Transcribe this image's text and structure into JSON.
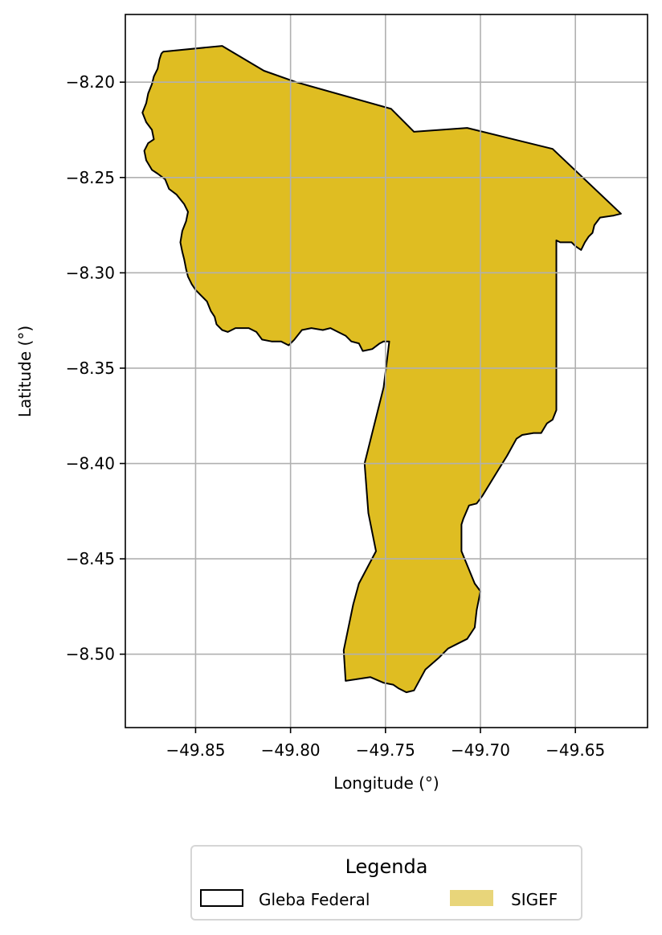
{
  "chart_data": {
    "type": "map",
    "title": "",
    "xlabel": "Longitude (°)",
    "ylabel": "Latitude (°)",
    "xlim": [
      -49.887,
      -49.612
    ],
    "ylim": [
      -8.5385,
      -8.1645
    ],
    "xticks": [
      -49.85,
      -49.8,
      -49.75,
      -49.7,
      -49.65
    ],
    "xtick_labels": [
      "−49.85",
      "−49.80",
      "−49.75",
      "−49.70",
      "−49.65"
    ],
    "yticks": [
      -8.2,
      -8.25,
      -8.3,
      -8.35,
      -8.4,
      -8.45,
      -8.5
    ],
    "ytick_labels": [
      "−8.20",
      "−8.25",
      "−8.30",
      "−8.35",
      "−8.40",
      "−8.45",
      "−8.50"
    ],
    "grid": true,
    "legend": {
      "title": "Legenda",
      "placement": "bottom-center",
      "entries": [
        {
          "label": "Gleba Federal",
          "style": "outline",
          "edge_color": "#000000"
        },
        {
          "label": "SIGEF",
          "style": "fill",
          "color": "#e8d57a"
        }
      ]
    },
    "layers": [
      {
        "name": "Gleba Federal",
        "fill_color": "#dfbd22",
        "edge_color": "#000000",
        "polygon": [
          [
            -49.867,
            -8.184
          ],
          [
            -49.836,
            -8.181
          ],
          [
            -49.814,
            -8.194
          ],
          [
            -49.797,
            -8.2
          ],
          [
            -49.747,
            -8.214
          ],
          [
            -49.735,
            -8.226
          ],
          [
            -49.707,
            -8.224
          ],
          [
            -49.662,
            -8.235
          ],
          [
            -49.626,
            -8.269
          ],
          [
            -49.63,
            -8.27
          ],
          [
            -49.637,
            -8.271
          ],
          [
            -49.64,
            -8.275
          ],
          [
            -49.641,
            -8.279
          ],
          [
            -49.643,
            -8.281
          ],
          [
            -49.645,
            -8.284
          ],
          [
            -49.647,
            -8.288
          ],
          [
            -49.65,
            -8.286
          ],
          [
            -49.652,
            -8.284
          ],
          [
            -49.656,
            -8.284
          ],
          [
            -49.658,
            -8.284
          ],
          [
            -49.66,
            -8.283
          ],
          [
            -49.66,
            -8.372
          ],
          [
            -49.662,
            -8.377
          ],
          [
            -49.665,
            -8.379
          ],
          [
            -49.668,
            -8.384
          ],
          [
            -49.672,
            -8.384
          ],
          [
            -49.678,
            -8.385
          ],
          [
            -49.681,
            -8.387
          ],
          [
            -49.686,
            -8.396
          ],
          [
            -49.691,
            -8.404
          ],
          [
            -49.699,
            -8.417
          ],
          [
            -49.702,
            -8.421
          ],
          [
            -49.706,
            -8.422
          ],
          [
            -49.709,
            -8.429
          ],
          [
            -49.71,
            -8.432
          ],
          [
            -49.71,
            -8.446
          ],
          [
            -49.703,
            -8.463
          ],
          [
            -49.7,
            -8.467
          ],
          [
            -49.702,
            -8.477
          ],
          [
            -49.703,
            -8.486
          ],
          [
            -49.707,
            -8.492
          ],
          [
            -49.713,
            -8.495
          ],
          [
            -49.717,
            -8.497
          ],
          [
            -49.722,
            -8.502
          ],
          [
            -49.729,
            -8.508
          ],
          [
            -49.735,
            -8.519
          ],
          [
            -49.739,
            -8.52
          ],
          [
            -49.743,
            -8.518
          ],
          [
            -49.746,
            -8.516
          ],
          [
            -49.751,
            -8.515
          ],
          [
            -49.758,
            -8.512
          ],
          [
            -49.771,
            -8.514
          ],
          [
            -49.772,
            -8.498
          ],
          [
            -49.767,
            -8.474
          ],
          [
            -49.764,
            -8.463
          ],
          [
            -49.755,
            -8.446
          ],
          [
            -49.759,
            -8.426
          ],
          [
            -49.761,
            -8.4
          ],
          [
            -49.751,
            -8.36
          ],
          [
            -49.749,
            -8.344
          ],
          [
            -49.748,
            -8.336
          ],
          [
            -49.751,
            -8.336
          ],
          [
            -49.753,
            -8.337
          ],
          [
            -49.757,
            -8.34
          ],
          [
            -49.762,
            -8.341
          ],
          [
            -49.764,
            -8.337
          ],
          [
            -49.768,
            -8.336
          ],
          [
            -49.771,
            -8.333
          ],
          [
            -49.775,
            -8.331
          ],
          [
            -49.779,
            -8.329
          ],
          [
            -49.783,
            -8.33
          ],
          [
            -49.789,
            -8.329
          ],
          [
            -49.794,
            -8.33
          ],
          [
            -49.798,
            -8.335
          ],
          [
            -49.801,
            -8.338
          ],
          [
            -49.805,
            -8.336
          ],
          [
            -49.81,
            -8.336
          ],
          [
            -49.815,
            -8.335
          ],
          [
            -49.818,
            -8.331
          ],
          [
            -49.822,
            -8.329
          ],
          [
            -49.826,
            -8.329
          ],
          [
            -49.829,
            -8.329
          ],
          [
            -49.833,
            -8.331
          ],
          [
            -49.836,
            -8.33
          ],
          [
            -49.839,
            -8.327
          ],
          [
            -49.84,
            -8.323
          ],
          [
            -49.842,
            -8.32
          ],
          [
            -49.844,
            -8.315
          ],
          [
            -49.847,
            -8.312
          ],
          [
            -49.85,
            -8.309
          ],
          [
            -49.852,
            -8.306
          ],
          [
            -49.854,
            -8.302
          ],
          [
            -49.855,
            -8.298
          ],
          [
            -49.856,
            -8.293
          ],
          [
            -49.857,
            -8.289
          ],
          [
            -49.858,
            -8.284
          ],
          [
            -49.857,
            -8.278
          ],
          [
            -49.855,
            -8.273
          ],
          [
            -49.854,
            -8.268
          ],
          [
            -49.856,
            -8.264
          ],
          [
            -49.86,
            -8.259
          ],
          [
            -49.864,
            -8.256
          ],
          [
            -49.866,
            -8.251
          ],
          [
            -49.87,
            -8.248
          ],
          [
            -49.873,
            -8.246
          ],
          [
            -49.876,
            -8.241
          ],
          [
            -49.877,
            -8.236
          ],
          [
            -49.875,
            -8.232
          ],
          [
            -49.872,
            -8.23
          ],
          [
            -49.873,
            -8.225
          ],
          [
            -49.876,
            -8.221
          ],
          [
            -49.878,
            -8.216
          ],
          [
            -49.876,
            -8.211
          ],
          [
            -49.875,
            -8.206
          ],
          [
            -49.873,
            -8.201
          ],
          [
            -49.872,
            -8.197
          ],
          [
            -49.87,
            -8.193
          ],
          [
            -49.869,
            -8.188
          ],
          [
            -49.868,
            -8.185
          ]
        ]
      }
    ]
  }
}
